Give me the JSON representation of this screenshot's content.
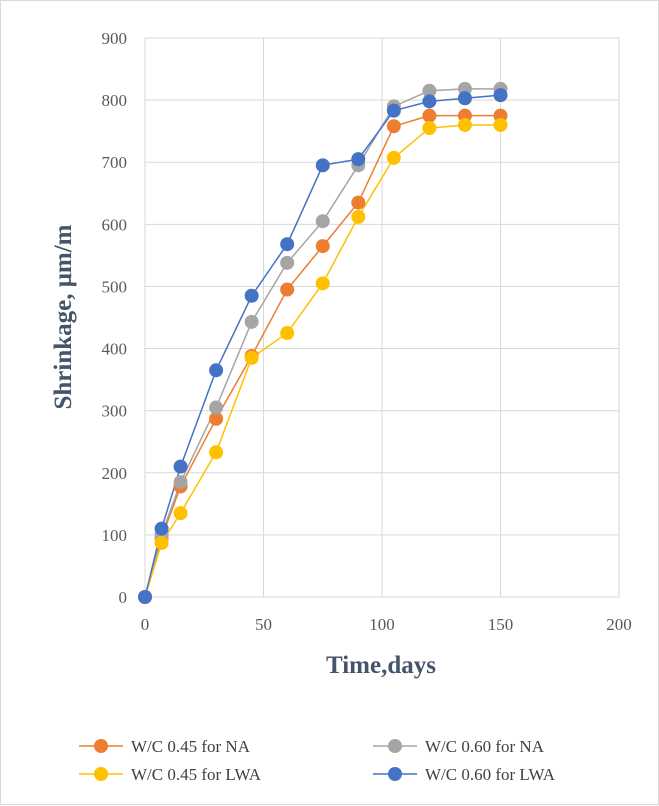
{
  "chart_data": {
    "type": "scatter",
    "xlabel": "Time,days",
    "ylabel": "Shrinkage, μm/m",
    "xlim": [
      0,
      200
    ],
    "ylim": [
      0,
      900
    ],
    "xticks": [
      "0",
      "50",
      "100",
      "150",
      "200"
    ],
    "yticks": [
      "0",
      "100",
      "200",
      "300",
      "400",
      "500",
      "600",
      "700",
      "800",
      "900"
    ],
    "grid": true,
    "legend_position": "bottom",
    "series": [
      {
        "name": "W/C 0.45 for NA",
        "color": "#ed7d31",
        "x": [
          0,
          7,
          15,
          30,
          45,
          60,
          75,
          90,
          105,
          120,
          135,
          150
        ],
        "y": [
          0,
          95,
          178,
          287,
          388,
          495,
          565,
          635,
          758,
          775,
          775,
          775
        ]
      },
      {
        "name": "W/C 0.60 for NA",
        "color": "#a5a5a5",
        "x": [
          0,
          7,
          15,
          30,
          45,
          60,
          75,
          90,
          105,
          120,
          135,
          150
        ],
        "y": [
          0,
          100,
          185,
          305,
          443,
          538,
          605,
          695,
          790,
          815,
          818,
          818
        ]
      },
      {
        "name": "W/C 0.45 for LWA",
        "color": "#ffc000",
        "x": [
          0,
          7,
          15,
          30,
          45,
          60,
          75,
          90,
          105,
          120,
          135,
          150
        ],
        "y": [
          0,
          87,
          135,
          233,
          385,
          425,
          505,
          612,
          707,
          755,
          760,
          760
        ]
      },
      {
        "name": "W/C 0.60 for LWA",
        "color": "#4472c4",
        "x": [
          0,
          7,
          15,
          30,
          45,
          60,
          75,
          90,
          105,
          120,
          135,
          150
        ],
        "y": [
          0,
          110,
          210,
          365,
          485,
          568,
          695,
          705,
          783,
          798,
          803,
          808
        ]
      }
    ]
  }
}
